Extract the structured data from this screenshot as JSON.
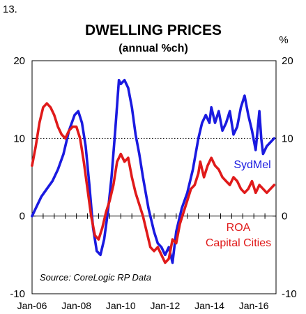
{
  "figure_number": "13.",
  "chart_data": {
    "type": "line",
    "title": "DWELLING PRICES",
    "subtitle": "(annual %ch)",
    "unit_right": "%",
    "source": "Source: CoreLogic RP Data",
    "ylim": [
      -10,
      20
    ],
    "y_ticks": [
      -10,
      0,
      10,
      20
    ],
    "x_range": [
      "2006-01",
      "2016-12"
    ],
    "x_ticks": [
      "Jan-06",
      "Jan-08",
      "Jan-10",
      "Jan-12",
      "Jan-14",
      "Jan-16"
    ],
    "x_tick_dates": [
      "2006-01",
      "2008-01",
      "2010-01",
      "2012-01",
      "2014-01",
      "2016-01"
    ],
    "reference_lines": [
      {
        "y": 10,
        "style": "dotted"
      }
    ],
    "grid": false,
    "series": [
      {
        "name": "SydMel",
        "color": "#1a1ae0",
        "label_lines": [
          "SydMel"
        ],
        "points": [
          [
            "2006-01",
            0.0
          ],
          [
            "2006-03",
            1.0
          ],
          [
            "2006-06",
            2.5
          ],
          [
            "2006-09",
            3.5
          ],
          [
            "2006-12",
            4.5
          ],
          [
            "2007-03",
            6.0
          ],
          [
            "2007-06",
            8.0
          ],
          [
            "2007-09",
            11.0
          ],
          [
            "2007-12",
            13.0
          ],
          [
            "2008-02",
            13.5
          ],
          [
            "2008-04",
            12.0
          ],
          [
            "2008-06",
            9.0
          ],
          [
            "2008-08",
            4.0
          ],
          [
            "2008-10",
            -1.5
          ],
          [
            "2008-12",
            -4.5
          ],
          [
            "2009-02",
            -5.0
          ],
          [
            "2009-04",
            -3.0
          ],
          [
            "2009-06",
            0.5
          ],
          [
            "2009-08",
            5.0
          ],
          [
            "2009-10",
            11.0
          ],
          [
            "2009-12",
            17.5
          ],
          [
            "2010-01",
            17.0
          ],
          [
            "2010-03",
            17.5
          ],
          [
            "2010-05",
            16.5
          ],
          [
            "2010-07",
            14.0
          ],
          [
            "2010-09",
            10.5
          ],
          [
            "2010-11",
            8.0
          ],
          [
            "2011-01",
            5.0
          ],
          [
            "2011-04",
            1.0
          ],
          [
            "2011-07",
            -2.0
          ],
          [
            "2011-09",
            -3.5
          ],
          [
            "2011-11",
            -4.0
          ],
          [
            "2012-01",
            -5.0
          ],
          [
            "2012-03",
            -4.0
          ],
          [
            "2012-05",
            -6.0
          ],
          [
            "2012-07",
            -2.0
          ],
          [
            "2012-10",
            1.0
          ],
          [
            "2013-01",
            3.0
          ],
          [
            "2013-04",
            6.0
          ],
          [
            "2013-07",
            10.0
          ],
          [
            "2013-09",
            12.0
          ],
          [
            "2013-11",
            13.0
          ],
          [
            "2014-01",
            12.0
          ],
          [
            "2014-02",
            14.0
          ],
          [
            "2014-04",
            12.0
          ],
          [
            "2014-06",
            13.5
          ],
          [
            "2014-08",
            11.0
          ],
          [
            "2014-10",
            12.0
          ],
          [
            "2014-12",
            13.5
          ],
          [
            "2015-02",
            10.5
          ],
          [
            "2015-04",
            11.5
          ],
          [
            "2015-06",
            14.0
          ],
          [
            "2015-08",
            15.5
          ],
          [
            "2015-10",
            13.0
          ],
          [
            "2015-12",
            11.0
          ],
          [
            "2016-02",
            8.5
          ],
          [
            "2016-04",
            13.5
          ],
          [
            "2016-05",
            10.0
          ],
          [
            "2016-06",
            8.0
          ],
          [
            "2016-08",
            9.0
          ],
          [
            "2016-10",
            9.5
          ],
          [
            "2016-12",
            10.0
          ]
        ]
      },
      {
        "name": "ROA Capital Cities",
        "color": "#e01a1a",
        "label_lines": [
          "ROA",
          "Capital Cities"
        ],
        "points": [
          [
            "2006-01",
            6.5
          ],
          [
            "2006-03",
            9.0
          ],
          [
            "2006-05",
            12.0
          ],
          [
            "2006-07",
            14.0
          ],
          [
            "2006-09",
            14.5
          ],
          [
            "2006-11",
            14.0
          ],
          [
            "2007-01",
            13.0
          ],
          [
            "2007-03",
            11.5
          ],
          [
            "2007-05",
            10.5
          ],
          [
            "2007-07",
            10.0
          ],
          [
            "2007-09",
            11.0
          ],
          [
            "2007-11",
            11.5
          ],
          [
            "2008-01",
            11.5
          ],
          [
            "2008-03",
            10.0
          ],
          [
            "2008-05",
            7.0
          ],
          [
            "2008-07",
            3.5
          ],
          [
            "2008-09",
            0.0
          ],
          [
            "2008-11",
            -2.5
          ],
          [
            "2009-01",
            -3.0
          ],
          [
            "2009-03",
            -1.5
          ],
          [
            "2009-05",
            0.5
          ],
          [
            "2009-07",
            2.0
          ],
          [
            "2009-09",
            4.0
          ],
          [
            "2009-11",
            7.0
          ],
          [
            "2010-01",
            8.0
          ],
          [
            "2010-03",
            7.0
          ],
          [
            "2010-05",
            7.5
          ],
          [
            "2010-07",
            5.0
          ],
          [
            "2010-09",
            3.0
          ],
          [
            "2010-11",
            1.5
          ],
          [
            "2011-01",
            0.0
          ],
          [
            "2011-03",
            -2.0
          ],
          [
            "2011-05",
            -4.0
          ],
          [
            "2011-07",
            -4.5
          ],
          [
            "2011-09",
            -4.0
          ],
          [
            "2011-11",
            -5.0
          ],
          [
            "2012-01",
            -6.0
          ],
          [
            "2012-03",
            -5.5
          ],
          [
            "2012-05",
            -3.0
          ],
          [
            "2012-07",
            -3.5
          ],
          [
            "2012-09",
            -1.0
          ],
          [
            "2012-11",
            0.5
          ],
          [
            "2013-01",
            2.0
          ],
          [
            "2013-03",
            3.5
          ],
          [
            "2013-05",
            4.0
          ],
          [
            "2013-07",
            5.5
          ],
          [
            "2013-08",
            7.0
          ],
          [
            "2013-10",
            5.0
          ],
          [
            "2013-12",
            6.5
          ],
          [
            "2014-02",
            7.5
          ],
          [
            "2014-04",
            6.5
          ],
          [
            "2014-06",
            6.0
          ],
          [
            "2014-08",
            5.0
          ],
          [
            "2014-10",
            4.5
          ],
          [
            "2014-12",
            4.0
          ],
          [
            "2015-02",
            5.0
          ],
          [
            "2015-04",
            4.5
          ],
          [
            "2015-06",
            3.5
          ],
          [
            "2015-08",
            3.0
          ],
          [
            "2015-10",
            3.5
          ],
          [
            "2015-12",
            4.5
          ],
          [
            "2016-02",
            3.0
          ],
          [
            "2016-04",
            4.0
          ],
          [
            "2016-06",
            3.5
          ],
          [
            "2016-08",
            3.0
          ],
          [
            "2016-10",
            3.5
          ],
          [
            "2016-12",
            4.0
          ]
        ]
      }
    ]
  }
}
